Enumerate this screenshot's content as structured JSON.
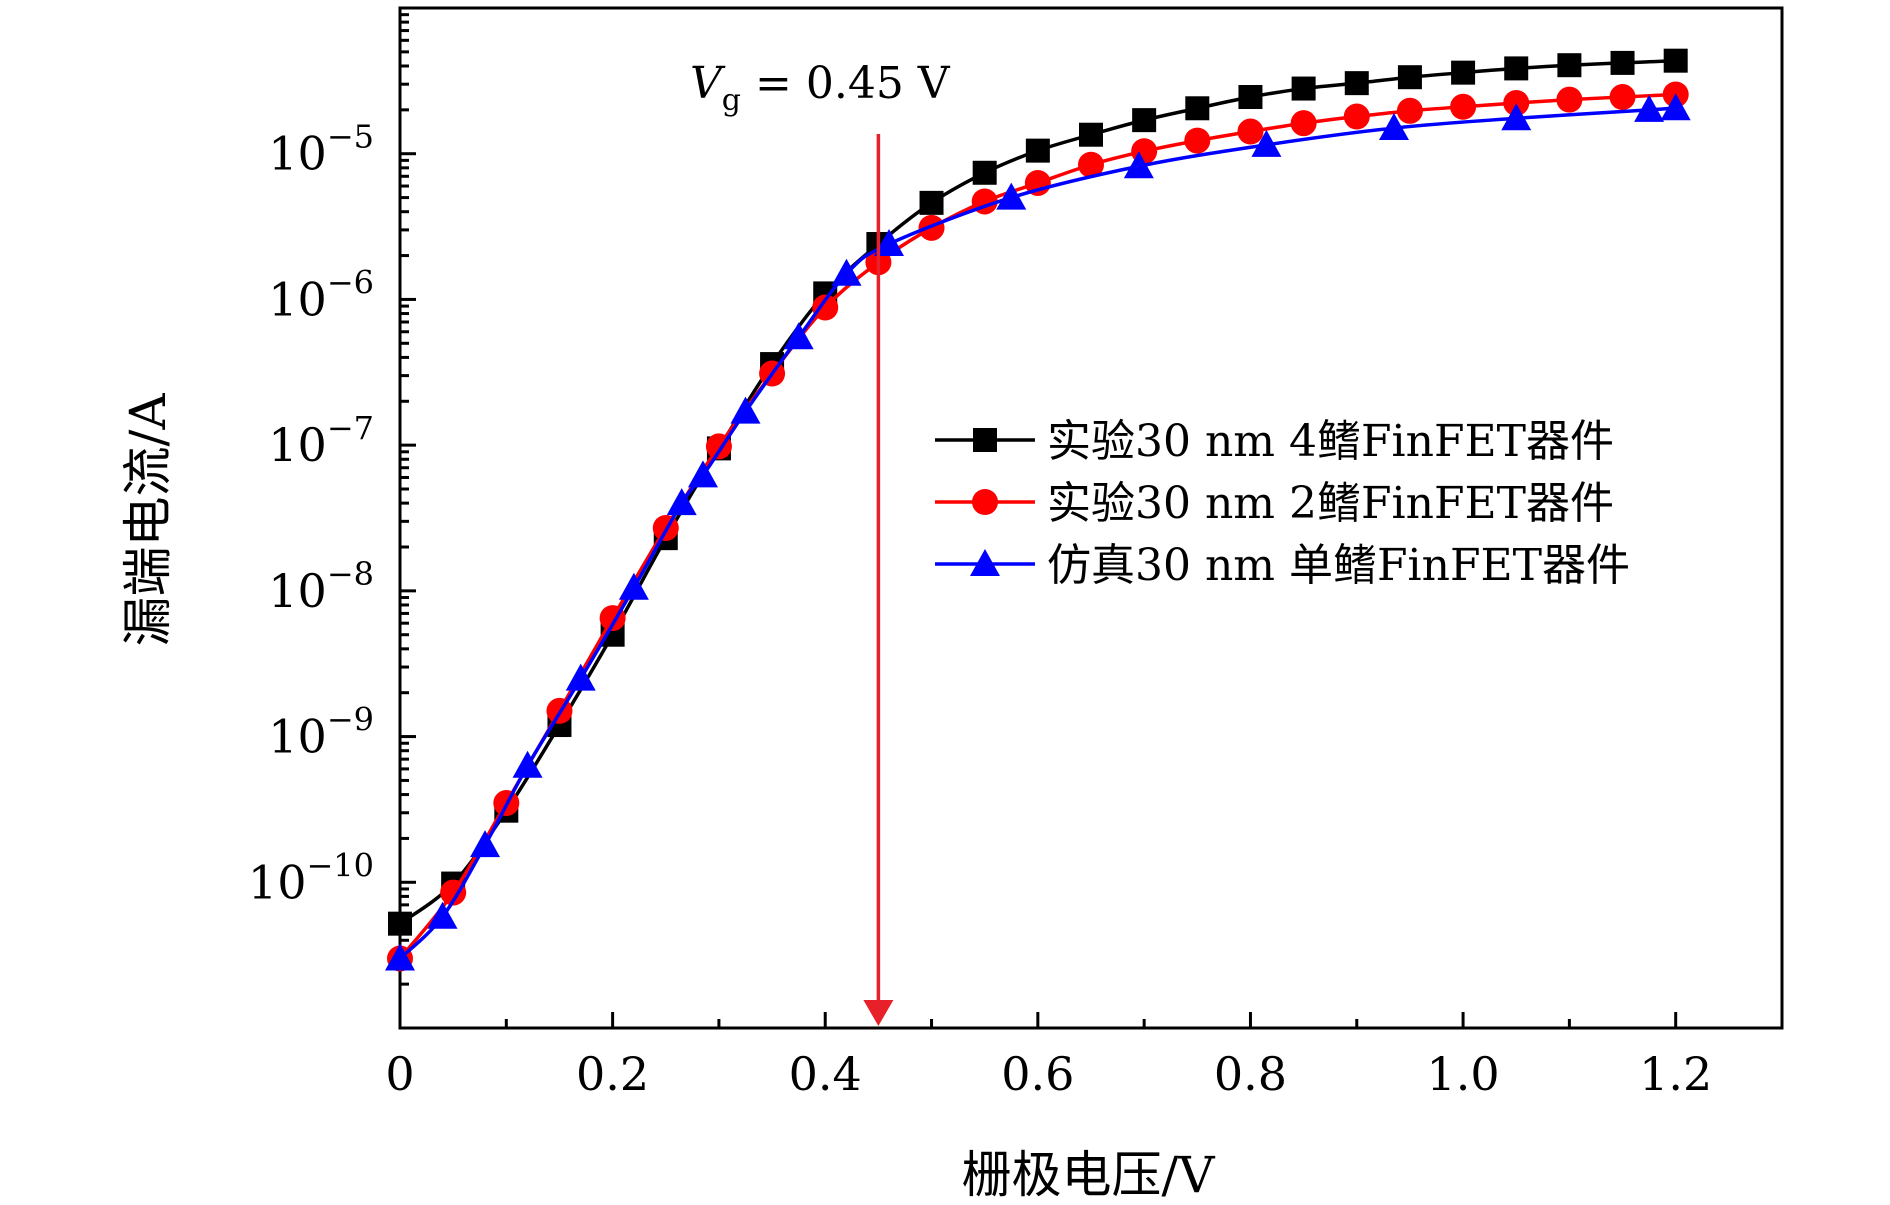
{
  "chart_data": {
    "type": "line",
    "xlabel": "栅极电压/V",
    "ylabel": "漏端电流/A",
    "x_scale": "linear",
    "y_scale": "log",
    "xlim": [
      0,
      1.3
    ],
    "ylim": [
      1e-11,
      0.0001
    ],
    "x_ticks": [
      0,
      0.2,
      0.4,
      0.6,
      0.8,
      1.0,
      1.2
    ],
    "x_tick_labels": [
      "0",
      "0.2",
      "0.4",
      "0.6",
      "0.8",
      "1.0",
      "1.2"
    ],
    "y_ticks": [
      1e-10,
      1e-09,
      1e-08,
      1e-07,
      1e-06,
      1e-05
    ],
    "y_tick_labels": [
      {
        "base": "10",
        "exp": "−10"
      },
      {
        "base": "10",
        "exp": "−9"
      },
      {
        "base": "10",
        "exp": "−8"
      },
      {
        "base": "10",
        "exp": "−7"
      },
      {
        "base": "10",
        "exp": "−6"
      },
      {
        "base": "10",
        "exp": "−5"
      }
    ],
    "grid": false,
    "legend_position": "center-right",
    "annotation": {
      "text_main": "V",
      "text_sub": "g",
      "text_rest": " = 0.45 V",
      "x": 0.45,
      "color": "#e8202a"
    },
    "series": [
      {
        "name": "实验30 nm 4鳍FinFET器件",
        "color": "#000000",
        "marker": "square",
        "x": [
          0,
          0.05,
          0.1,
          0.15,
          0.2,
          0.25,
          0.3,
          0.35,
          0.4,
          0.45,
          0.5,
          0.55,
          0.6,
          0.65,
          0.7,
          0.75,
          0.8,
          0.85,
          0.9,
          0.95,
          1.0,
          1.05,
          1.1,
          1.15,
          1.2
        ],
        "y": [
          5.2e-11,
          9.8e-11,
          3.1e-10,
          1.2e-09,
          5e-09,
          2.3e-08,
          9.5e-08,
          3.6e-07,
          1.1e-06,
          2.4e-06,
          4.6e-06,
          7.4e-06,
          1.05e-05,
          1.35e-05,
          1.7e-05,
          2.05e-05,
          2.45e-05,
          2.8e-05,
          3.05e-05,
          3.35e-05,
          3.6e-05,
          3.85e-05,
          4.05e-05,
          4.2e-05,
          4.35e-05
        ]
      },
      {
        "name": "实验30 nm 2鳍FinFET器件",
        "color": "#ff0000",
        "marker": "circle",
        "x": [
          0,
          0.05,
          0.1,
          0.15,
          0.2,
          0.25,
          0.3,
          0.35,
          0.4,
          0.45,
          0.5,
          0.55,
          0.6,
          0.65,
          0.7,
          0.75,
          0.8,
          0.85,
          0.9,
          0.95,
          1.0,
          1.05,
          1.1,
          1.15,
          1.2
        ],
        "y": [
          3e-11,
          8.5e-11,
          3.5e-10,
          1.5e-09,
          6.5e-09,
          2.7e-08,
          9.8e-08,
          3.1e-07,
          8.8e-07,
          1.8e-06,
          3.1e-06,
          4.7e-06,
          6.3e-06,
          8.4e-06,
          1.04e-05,
          1.23e-05,
          1.42e-05,
          1.62e-05,
          1.8e-05,
          1.97e-05,
          2.1e-05,
          2.23e-05,
          2.35e-05,
          2.45e-05,
          2.55e-05
        ]
      },
      {
        "name": "仿真30 nm 单鳍FinFET器件",
        "color": "#0000ff",
        "marker": "triangle",
        "x": [
          0,
          0.04,
          0.08,
          0.12,
          0.17,
          0.22,
          0.265,
          0.285,
          0.325,
          0.375,
          0.42,
          0.46,
          0.575,
          0.695,
          0.815,
          0.935,
          1.05,
          1.175,
          1.2
        ],
        "y": [
          3e-11,
          5.8e-11,
          1.8e-10,
          6.3e-10,
          2.5e-09,
          1.05e-08,
          4e-08,
          6.2e-08,
          1.7e-07,
          5.5e-07,
          1.5e-06,
          2.4e-06,
          5e-06,
          8.2e-06,
          1.15e-05,
          1.5e-05,
          1.75e-05,
          2e-05,
          2.05e-05
        ]
      }
    ]
  }
}
